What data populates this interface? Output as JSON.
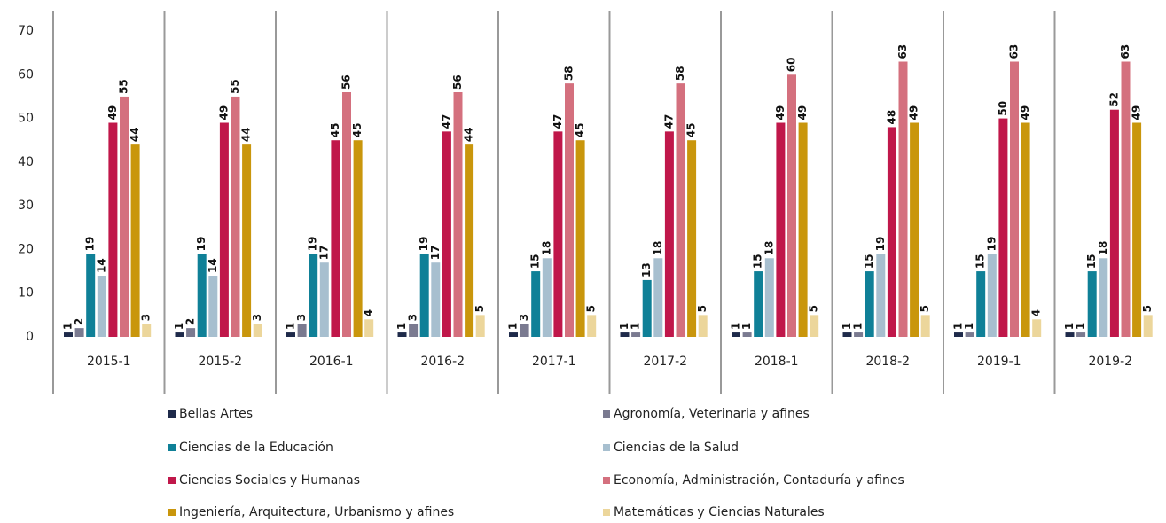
{
  "chart_data": {
    "type": "bar",
    "categories": [
      "2015-1",
      "2015-2",
      "2016-1",
      "2016-2",
      "2017-1",
      "2017-2",
      "2018-1",
      "2018-2",
      "2019-1",
      "2019-2"
    ],
    "series": [
      {
        "name": "Bellas Artes",
        "color": "#1e2a4a",
        "values": [
          1,
          1,
          1,
          1,
          1,
          1,
          1,
          1,
          1,
          1
        ]
      },
      {
        "name": "Agronomía, Veterinaria y afines",
        "color": "#7a7a90",
        "values": [
          2,
          2,
          3,
          3,
          3,
          1,
          1,
          1,
          1,
          1
        ]
      },
      {
        "name": "Ciencias de la Educación",
        "color": "#0f8097",
        "values": [
          19,
          19,
          19,
          19,
          15,
          13,
          15,
          15,
          15,
          15
        ]
      },
      {
        "name": "Ciencias de la Salud",
        "color": "#a7bfcf",
        "values": [
          14,
          14,
          17,
          17,
          18,
          18,
          18,
          19,
          19,
          18
        ]
      },
      {
        "name": "Ciencias Sociales y Humanas",
        "color": "#c0174a",
        "values": [
          49,
          49,
          45,
          47,
          47,
          47,
          49,
          48,
          50,
          52
        ]
      },
      {
        "name": "Economía, Administración, Contaduría y afines",
        "color": "#d4707e",
        "values": [
          55,
          55,
          56,
          56,
          58,
          58,
          60,
          63,
          63,
          63
        ]
      },
      {
        "name": "Ingeniería, Arquitectura, Urbanismo y afines",
        "color": "#c9960c",
        "values": [
          44,
          44,
          45,
          44,
          45,
          45,
          49,
          49,
          49,
          49
        ]
      },
      {
        "name": "Matemáticas y Ciencias Naturales",
        "color": "#ecd69b",
        "values": [
          3,
          3,
          4,
          5,
          5,
          5,
          5,
          5,
          4,
          5
        ]
      }
    ],
    "ylim": [
      0,
      70
    ],
    "yticks": [
      0,
      10,
      20,
      30,
      40,
      50,
      60,
      70
    ],
    "legend": "bottom"
  }
}
